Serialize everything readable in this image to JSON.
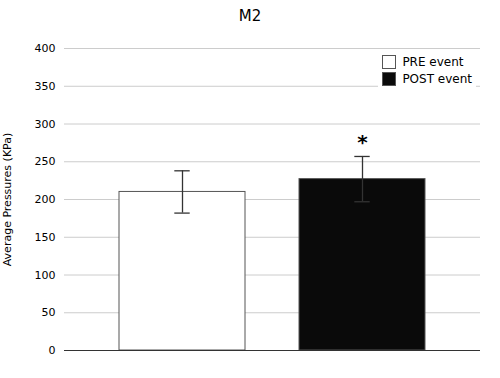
{
  "chart_data": {
    "type": "bar",
    "title": "M2",
    "ylabel": "Average Pressures (KPa)",
    "categories": [
      "PRE event",
      "POST event"
    ],
    "values": [
      210,
      227
    ],
    "errors": [
      28,
      30
    ],
    "colors": [
      "#ffffff",
      "#0a0a0a"
    ],
    "ylim": [
      0,
      400
    ],
    "yticks": [
      0,
      50,
      100,
      150,
      200,
      250,
      300,
      350,
      400
    ],
    "grid": true,
    "legend": "upper right",
    "tick_labels": "y",
    "annotations": [
      {
        "text": "*",
        "category": "POST event"
      }
    ]
  }
}
